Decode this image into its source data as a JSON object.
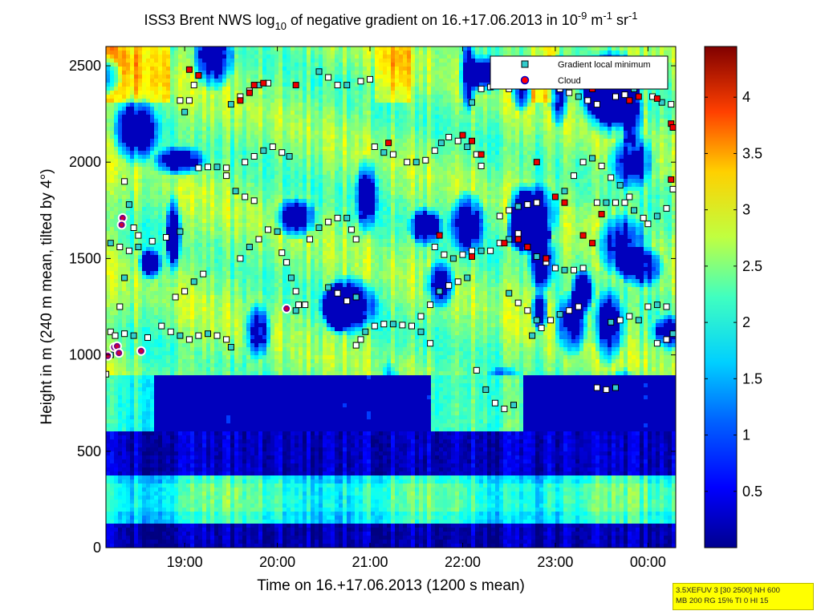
{
  "chart_data": {
    "type": "heatmap",
    "title": {
      "pre": "ISS3 Brent NWS log",
      "sub": "10",
      "mid": " of negative gradient on 16.+17.06.2013 in 10",
      "sup1": "-9",
      "mid2": " m",
      "sup2": "-1",
      "mid3": " sr",
      "sup3": "-1"
    },
    "xlabel": "Time on 16.+17.06.2013 (1200 s mean)",
    "ylabel": "Height in m (240 m mean, tilted by 4°)",
    "x_ticks": [
      "19:00",
      "20:00",
      "21:00",
      "22:00",
      "23:00",
      "00:00"
    ],
    "x_range_hours": [
      18.0,
      24.15
    ],
    "x_tick_hours": [
      18.85,
      19.85,
      20.85,
      21.85,
      22.85,
      23.85
    ],
    "ylim": [
      0,
      2600
    ],
    "y_ticks": [
      0,
      500,
      1000,
      1500,
      2000,
      2500
    ],
    "colorbar": {
      "min": 0,
      "max": 4.45,
      "ticks": [
        0.5,
        1,
        1.5,
        2,
        2.5,
        3,
        3.5,
        4
      ],
      "tick_labels": [
        "0.5",
        "1",
        "1.5",
        "2",
        "2.5",
        "3",
        "3.5",
        "4"
      ],
      "colormap": "jet"
    },
    "legend": {
      "placement": "top-right",
      "entries": [
        {
          "label": "Gradient local minimum",
          "marker": "square",
          "color": "#33cccc"
        },
        {
          "label": "Cloud",
          "marker": "circle",
          "color": "#ff0000",
          "edge": "#0000cc"
        }
      ]
    },
    "clouds": [
      {
        "t": 18.02,
        "h": 995
      },
      {
        "t": 18.09,
        "h": 1040
      },
      {
        "t": 18.12,
        "h": 1045
      },
      {
        "t": 18.14,
        "h": 1010
      },
      {
        "t": 18.18,
        "h": 1710
      },
      {
        "t": 18.17,
        "h": 1675
      },
      {
        "t": 18.38,
        "h": 1020
      },
      {
        "t": 19.95,
        "h": 1240
      }
    ],
    "minima_tracks": [
      [
        [
          18.05,
          1580
        ],
        [
          18.15,
          1560
        ],
        [
          18.25,
          1540
        ],
        [
          18.35,
          1560
        ],
        [
          18.5,
          1590
        ],
        [
          18.65,
          1610
        ],
        [
          18.8,
          1640
        ]
      ],
      [
        [
          18.05,
          1120
        ],
        [
          18.2,
          1110
        ],
        [
          18.3,
          1100
        ],
        [
          18.45,
          1090
        ]
      ],
      [
        [
          18.0,
          900
        ],
        [
          18.05,
          1000
        ],
        [
          18.1,
          1100
        ],
        [
          18.15,
          1250
        ],
        [
          18.2,
          1400
        ]
      ],
      [
        [
          18.6,
          1150
        ],
        [
          18.7,
          1120
        ],
        [
          18.8,
          1100
        ],
        [
          18.9,
          1080
        ],
        [
          19.0,
          1100
        ],
        [
          19.1,
          1110
        ],
        [
          19.2,
          1100
        ],
        [
          19.3,
          1080
        ],
        [
          19.35,
          1040
        ]
      ],
      [
        [
          18.75,
          1300
        ],
        [
          18.85,
          1330
        ],
        [
          18.95,
          1380
        ],
        [
          19.05,
          1420
        ]
      ],
      [
        [
          18.8,
          2320
        ],
        [
          18.85,
          2260
        ],
        [
          18.9,
          2320
        ],
        [
          18.95,
          2400
        ],
        [
          19.0,
          2450
        ]
      ],
      [
        [
          19.0,
          1970
        ],
        [
          19.1,
          1975
        ],
        [
          19.2,
          1975
        ],
        [
          19.3,
          1970
        ]
      ],
      [
        [
          19.3,
          1930
        ],
        [
          19.4,
          1850
        ],
        [
          19.5,
          1820
        ],
        [
          19.6,
          1800
        ]
      ],
      [
        [
          19.35,
          2300
        ],
        [
          19.45,
          2340
        ],
        [
          19.55,
          2370
        ],
        [
          19.65,
          2400
        ],
        [
          19.75,
          2410
        ]
      ],
      [
        [
          19.45,
          1500
        ],
        [
          19.55,
          1560
        ],
        [
          19.65,
          1600
        ],
        [
          19.75,
          1650
        ],
        [
          19.85,
          1640
        ]
      ],
      [
        [
          19.5,
          2000
        ],
        [
          19.6,
          2030
        ],
        [
          19.7,
          2060
        ],
        [
          19.8,
          2080
        ],
        [
          19.9,
          2050
        ],
        [
          19.98,
          2030
        ]
      ],
      [
        [
          19.9,
          1530
        ],
        [
          19.95,
          1480
        ],
        [
          20.0,
          1400
        ],
        [
          20.05,
          1330
        ],
        [
          20.08,
          1260
        ]
      ],
      [
        [
          20.05,
          1230
        ],
        [
          20.15,
          1260
        ]
      ],
      [
        [
          20.2,
          1600
        ],
        [
          20.3,
          1660
        ],
        [
          20.4,
          1690
        ],
        [
          20.5,
          1710
        ],
        [
          20.6,
          1710
        ],
        [
          20.65,
          1650
        ],
        [
          20.7,
          1600
        ]
      ],
      [
        [
          20.3,
          2470
        ],
        [
          20.4,
          2440
        ],
        [
          20.5,
          2400
        ],
        [
          20.6,
          2400
        ],
        [
          20.75,
          2420
        ],
        [
          20.85,
          2430
        ]
      ],
      [
        [
          20.4,
          1350
        ],
        [
          20.5,
          1320
        ],
        [
          20.6,
          1280
        ],
        [
          20.7,
          1300
        ]
      ],
      [
        [
          20.7,
          1050
        ],
        [
          20.75,
          1080
        ],
        [
          20.8,
          1120
        ],
        [
          20.9,
          1150
        ],
        [
          21.0,
          1160
        ],
        [
          21.1,
          1160
        ],
        [
          21.2,
          1155
        ],
        [
          21.3,
          1150
        ],
        [
          21.4,
          1120
        ],
        [
          21.5,
          1060
        ]
      ],
      [
        [
          20.9,
          2080
        ],
        [
          21.0,
          2050
        ],
        [
          21.1,
          2040
        ]
      ],
      [
        [
          21.25,
          2000
        ],
        [
          21.35,
          2000
        ],
        [
          21.45,
          2010
        ],
        [
          21.55,
          2060
        ],
        [
          21.62,
          2100
        ]
      ],
      [
        [
          21.4,
          1200
        ],
        [
          21.5,
          1260
        ],
        [
          21.6,
          1330
        ],
        [
          21.7,
          1360
        ],
        [
          21.8,
          1380
        ],
        [
          21.9,
          1400
        ]
      ],
      [
        [
          21.55,
          1560
        ],
        [
          21.65,
          1520
        ],
        [
          21.75,
          1500
        ],
        [
          21.85,
          1520
        ],
        [
          21.95,
          1540
        ],
        [
          22.05,
          1540
        ],
        [
          22.15,
          1540
        ],
        [
          22.25,
          1580
        ],
        [
          22.35,
          1600
        ]
      ],
      [
        [
          21.7,
          2130
        ],
        [
          21.8,
          2110
        ],
        [
          21.9,
          2080
        ],
        [
          22.0,
          2040
        ],
        [
          22.05,
          1980
        ]
      ],
      [
        [
          21.95,
          2310
        ],
        [
          22.05,
          2380
        ],
        [
          22.15,
          2390
        ],
        [
          22.25,
          2400
        ],
        [
          22.35,
          2380
        ]
      ],
      [
        [
          22.0,
          920
        ],
        [
          22.1,
          820
        ],
        [
          22.2,
          750
        ],
        [
          22.3,
          720
        ],
        [
          22.4,
          740
        ]
      ],
      [
        [
          22.25,
          1720
        ],
        [
          22.35,
          1750
        ],
        [
          22.45,
          1770
        ],
        [
          22.55,
          1780
        ],
        [
          22.65,
          1790
        ]
      ],
      [
        [
          22.35,
          1320
        ],
        [
          22.45,
          1270
        ],
        [
          22.55,
          1230
        ],
        [
          22.65,
          1180
        ]
      ],
      [
        [
          22.45,
          1630
        ],
        [
          22.55,
          1560
        ],
        [
          22.65,
          1510
        ],
        [
          22.75,
          1480
        ],
        [
          22.85,
          1450
        ],
        [
          22.95,
          1440
        ],
        [
          23.05,
          1440
        ],
        [
          23.15,
          1450
        ]
      ],
      [
        [
          22.6,
          1100
        ],
        [
          22.7,
          1140
        ],
        [
          22.8,
          1180
        ],
        [
          22.9,
          1210
        ],
        [
          23.0,
          1230
        ],
        [
          23.1,
          1250
        ]
      ],
      [
        [
          22.8,
          2400
        ],
        [
          22.9,
          2380
        ],
        [
          23.0,
          2360
        ],
        [
          23.1,
          2340
        ],
        [
          23.2,
          2320
        ],
        [
          23.3,
          2300
        ]
      ],
      [
        [
          22.95,
          1850
        ],
        [
          23.05,
          1930
        ],
        [
          23.15,
          2000
        ],
        [
          23.25,
          2020
        ],
        [
          23.35,
          1980
        ],
        [
          23.45,
          1920
        ],
        [
          23.55,
          1880
        ],
        [
          23.65,
          1820
        ]
      ],
      [
        [
          23.3,
          1790
        ],
        [
          23.4,
          1790
        ],
        [
          23.5,
          1790
        ],
        [
          23.6,
          1790
        ],
        [
          23.7,
          1750
        ],
        [
          23.8,
          1710
        ],
        [
          23.85,
          1680
        ],
        [
          23.95,
          1720
        ],
        [
          24.05,
          1760
        ],
        [
          24.12,
          1860
        ]
      ],
      [
        [
          23.45,
          1170
        ],
        [
          23.55,
          1180
        ],
        [
          23.65,
          1200
        ],
        [
          23.75,
          1180
        ]
      ],
      [
        [
          23.3,
          830
        ],
        [
          23.4,
          820
        ],
        [
          23.5,
          830
        ]
      ],
      [
        [
          23.95,
          1060
        ],
        [
          24.05,
          1080
        ],
        [
          24.12,
          1110
        ]
      ],
      [
        [
          23.5,
          2340
        ],
        [
          23.6,
          2350
        ],
        [
          23.7,
          2380
        ],
        [
          23.8,
          2400
        ],
        [
          23.9,
          2340
        ],
        [
          24.0,
          2310
        ],
        [
          24.1,
          2300
        ]
      ],
      [
        [
          23.85,
          1250
        ],
        [
          23.95,
          1260
        ],
        [
          24.05,
          1250
        ]
      ],
      [
        [
          18.2,
          1900
        ],
        [
          18.25,
          1780
        ],
        [
          18.3,
          1660
        ],
        [
          18.35,
          1620
        ]
      ]
    ],
    "red_minima": [
      [
        19.45,
        2320
      ],
      [
        19.55,
        2360
      ],
      [
        19.6,
        2400
      ],
      [
        19.7,
        2410
      ],
      [
        20.05,
        2400
      ],
      [
        21.85,
        2140
      ],
      [
        21.95,
        2110
      ],
      [
        22.05,
        2040
      ],
      [
        22.3,
        1580
      ],
      [
        22.45,
        1600
      ],
      [
        22.55,
        1560
      ],
      [
        22.75,
        1500
      ],
      [
        22.85,
        1820
      ],
      [
        22.95,
        1790
      ],
      [
        23.15,
        1620
      ],
      [
        23.25,
        1580
      ],
      [
        23.05,
        2420
      ],
      [
        23.25,
        2380
      ],
      [
        23.65,
        2320
      ],
      [
        23.75,
        2340
      ],
      [
        24.1,
        2200
      ],
      [
        24.12,
        2180
      ],
      [
        24.1,
        1910
      ],
      [
        21.6,
        1620
      ],
      [
        21.95,
        1510
      ],
      [
        22.65,
        2000
      ],
      [
        23.35,
        1730
      ],
      [
        18.9,
        2480
      ],
      [
        19.0,
        2450
      ],
      [
        23.95,
        2330
      ],
      [
        22.5,
        2390
      ],
      [
        21.05,
        2100
      ]
    ]
  },
  "info_box": {
    "line1": "3.5XEFUV 3 [30 2500] NH 600",
    "line2": "MB 200 RG 15% TI 0 HI 15"
  }
}
